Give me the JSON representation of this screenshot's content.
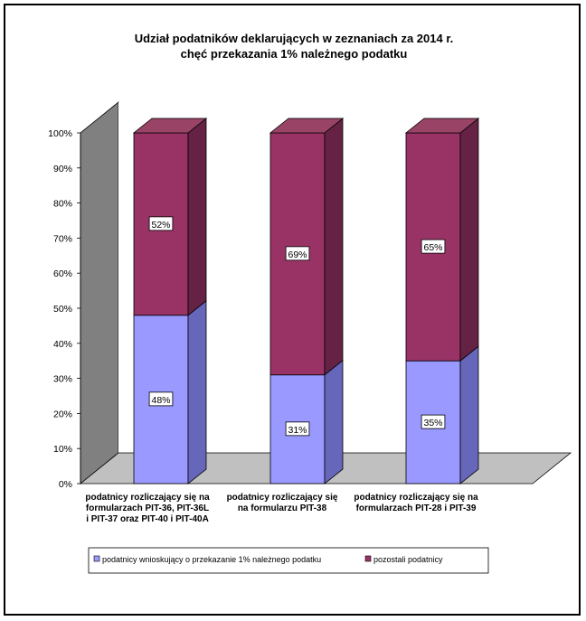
{
  "chart_data": {
    "type": "bar",
    "stacked": true,
    "percent_stacked": true,
    "three_d": true,
    "title": "Udział podatników deklarujących w zeznaniach za 2014 r.",
    "subtitle": "chęć przekazania 1% należnego podatku",
    "categories": [
      [
        "podatnicy rozliczający się na",
        "formularzach PIT-36, PIT-36L",
        "i PIT-37 oraz PIT-40 i PIT-40A"
      ],
      [
        "podatnicy rozliczający  się",
        "na formularzu PIT-38"
      ],
      [
        "podatnicy rozliczający się na",
        "formularzach PIT-28 i PIT-39"
      ]
    ],
    "series": [
      {
        "name": "podatnicy wnioskujący o przekazanie 1% należnego podatku",
        "values": [
          48,
          31,
          35
        ],
        "labels": [
          "48%",
          "31%",
          "35%"
        ],
        "color": "#9999ff",
        "side_color": "#6666bb",
        "top_color": "#b3b3ff"
      },
      {
        "name": "pozostali podatnicy",
        "values": [
          52,
          69,
          65
        ],
        "labels": [
          "52%",
          "69%",
          "65%"
        ],
        "color": "#993366",
        "side_color": "#662244",
        "top_color": "#994466"
      }
    ],
    "y_ticks": [
      "0%",
      "10%",
      "20%",
      "30%",
      "40%",
      "50%",
      "60%",
      "70%",
      "80%",
      "90%",
      "100%"
    ],
    "ylim": [
      0,
      100
    ],
    "grid": false,
    "legend": "bottom",
    "wall_color": "#808080",
    "floor_color": "#c0c0c0"
  }
}
